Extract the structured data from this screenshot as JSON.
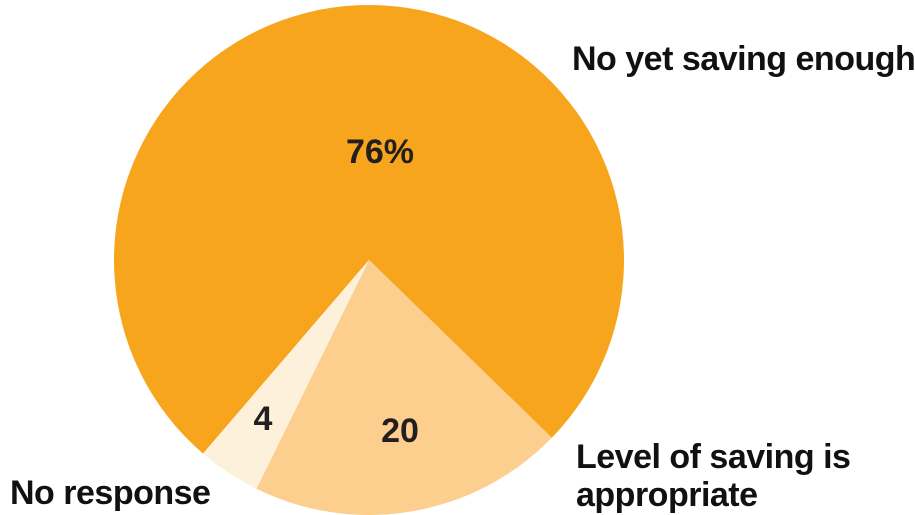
{
  "chart_data": {
    "type": "pie",
    "slices": [
      {
        "label": "No yet saving enough",
        "value": 76,
        "value_label": "76%",
        "color": "#f7a51d"
      },
      {
        "label": "Level of saving is appropriate",
        "value": 20,
        "value_label": "20",
        "color": "#fccf8f"
      },
      {
        "label": "No response",
        "value": 4,
        "value_label": "4",
        "color": "#fdf1dc"
      }
    ],
    "legend": {
      "not_saving": "No yet saving enough",
      "appropriate_line1": "Level of saving is",
      "appropriate_line2": "appropriate",
      "no_response": "No response"
    },
    "value_labels": {
      "not_saving": "76%",
      "appropriate": "20",
      "no_response": "4"
    }
  }
}
